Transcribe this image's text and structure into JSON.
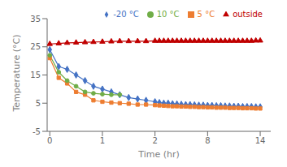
{
  "chart_data": {
    "type": "line",
    "title": "",
    "xlabel": "Time (hr)",
    "ylabel": "Temperature (°C)",
    "xlim": [
      -0.05,
      15.2
    ],
    "xticks": [
      0,
      1,
      2,
      8,
      14
    ],
    "ylim": [
      -5,
      35
    ],
    "yticks": [
      -5,
      5,
      15,
      25,
      35
    ],
    "legend": "upper right",
    "series": [
      {
        "name": "-20 °C",
        "color": "#4472C4",
        "marker": "diamond",
        "x": [
          0,
          0.17,
          0.33,
          0.5,
          0.67,
          0.83,
          1.0,
          1.17,
          1.33,
          1.5,
          1.67,
          1.83,
          2.0,
          2.5,
          3.0,
          3.5,
          4.0,
          4.5,
          5.0,
          5.5,
          6.0,
          6.5,
          7.0,
          7.5,
          8.0,
          8.5,
          9.0,
          9.5,
          10.0,
          10.5,
          11.0,
          11.5,
          12.0,
          12.5,
          13.0,
          13.5,
          14.0
        ],
        "values": [
          24,
          18,
          17,
          15,
          13,
          11,
          10,
          9,
          8,
          7,
          6.5,
          6,
          5.5,
          5.2,
          5.0,
          5.0,
          4.8,
          4.7,
          4.6,
          4.5,
          4.5,
          4.4,
          4.3,
          4.3,
          4.2,
          4.2,
          4.1,
          4.1,
          4.0,
          4.0,
          3.9,
          3.9,
          3.8,
          3.8,
          3.8,
          3.7,
          3.7
        ]
      },
      {
        "name": "5 °C",
        "color": "#ED7D31",
        "marker": "square",
        "x": [
          0,
          0.17,
          0.33,
          0.5,
          0.67,
          0.83,
          1.0,
          1.17,
          1.33,
          1.5,
          1.67,
          1.83,
          2.0,
          2.5,
          3.0,
          3.5,
          4.0,
          4.5,
          5.0,
          5.5,
          6.0,
          6.5,
          7.0,
          7.5,
          8.0,
          8.5,
          9.0,
          9.5,
          10.0,
          10.5,
          11.0,
          11.5,
          12.0,
          12.5,
          13.0,
          13.5,
          14.0
        ],
        "values": [
          21,
          14,
          12,
          9,
          8,
          6,
          5.5,
          5.2,
          5.0,
          4.8,
          4.5,
          4.5,
          4.3,
          4.2,
          4.1,
          4.0,
          3.9,
          3.9,
          3.8,
          3.8,
          3.7,
          3.7,
          3.6,
          3.6,
          3.5,
          3.5,
          3.4,
          3.4,
          3.4,
          3.3,
          3.3,
          3.3,
          3.2,
          3.2,
          3.2,
          3.1,
          3.1
        ]
      },
      {
        "name": "10 °C",
        "color": "#70AD47",
        "marker": "circle",
        "x": [
          0,
          0.17,
          0.33,
          0.5,
          0.67,
          0.83,
          1.0,
          1.17,
          1.33
        ],
        "values": [
          22,
          16,
          13,
          11,
          9,
          8.5,
          8.2,
          8.0,
          8.0
        ]
      },
      {
        "name": "outside",
        "color": "#C00000",
        "marker": "triangle",
        "x": [
          0,
          0.17,
          0.33,
          0.5,
          0.67,
          0.83,
          1.0,
          1.17,
          1.33,
          1.5,
          1.67,
          1.83,
          2.0,
          2.5,
          3.0,
          3.5,
          4.0,
          4.5,
          5.0,
          5.5,
          6.0,
          6.5,
          7.0,
          7.5,
          8.0,
          8.5,
          9.0,
          9.5,
          10.0,
          10.5,
          11.0,
          11.5,
          12.0,
          12.5,
          13.0,
          13.5,
          14.0
        ],
        "values": [
          26,
          26.2,
          26.4,
          26.5,
          26.6,
          26.7,
          26.8,
          26.9,
          27.0,
          27.0,
          27.0,
          27.0,
          27.1,
          27.1,
          27.1,
          27.1,
          27.1,
          27.1,
          27.1,
          27.1,
          27.1,
          27.1,
          27.1,
          27.1,
          27.1,
          27.1,
          27.1,
          27.1,
          27.1,
          27.1,
          27.1,
          27.1,
          27.1,
          27.1,
          27.1,
          27.2,
          27.2
        ]
      }
    ]
  }
}
